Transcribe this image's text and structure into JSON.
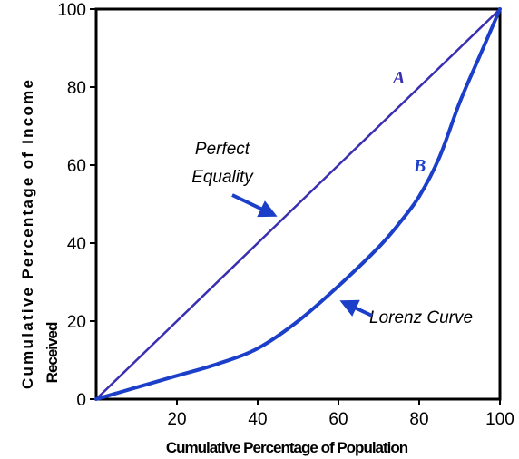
{
  "chart_data": {
    "type": "line",
    "xlabel": "Cumulative Percentage of Population",
    "ylabel_line1": "Cumulative Percentage of Income",
    "ylabel_line2": "Received",
    "xlim": [
      0,
      100
    ],
    "ylim": [
      0,
      100
    ],
    "x_ticks": [
      20,
      40,
      60,
      80,
      100
    ],
    "y_ticks": [
      0,
      20,
      40,
      60,
      80,
      100
    ],
    "grid": false,
    "series": [
      {
        "name": "Perfect Equality",
        "color": "#3a2fb0",
        "x": [
          0,
          100
        ],
        "y": [
          0,
          100
        ]
      },
      {
        "name": "Lorenz Curve",
        "color": "#1c3fc9",
        "x": [
          0,
          10,
          20,
          30,
          40,
          50,
          60,
          70,
          75,
          80,
          85,
          90,
          95,
          100
        ],
        "y": [
          0,
          3,
          6,
          9,
          13,
          20,
          29,
          39,
          45,
          52,
          62,
          76,
          88,
          100
        ]
      }
    ],
    "annotations": {
      "perfect_equality_line1": "Perfect",
      "perfect_equality_line2": "Equality",
      "lorenz_curve": "Lorenz Curve",
      "label_a": "A",
      "label_b": "B"
    },
    "annotation_color": "#1c3fc9"
  }
}
